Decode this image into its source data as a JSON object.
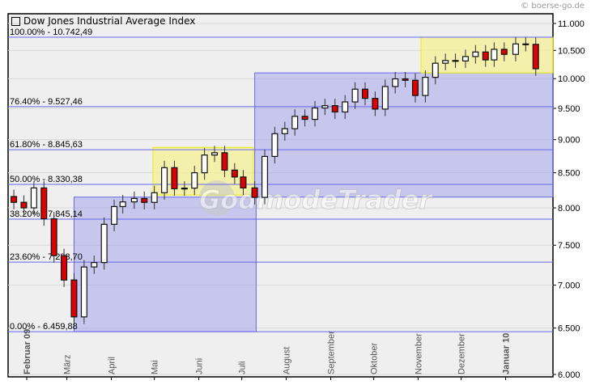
{
  "copyright": "© boerse-go.de",
  "watermark": "GodmodeTrader",
  "chart_data": {
    "type": "candlestick",
    "title": "Dow Jones Industrial Average Index",
    "y_scale": "log",
    "ylim": [
      6000,
      11000
    ],
    "y_ticks": [
      "6.000",
      "6.500",
      "7.000",
      "7.500",
      "8.000",
      "8.500",
      "9.000",
      "9.500",
      "10.000",
      "10.500",
      "11.000"
    ],
    "y_tick_values": [
      6000,
      6500,
      7000,
      7500,
      8000,
      8500,
      9000,
      9500,
      10000,
      10500,
      11000
    ],
    "x_range": [
      "2009-01-19",
      "2010-02-03"
    ],
    "x_ticks": [
      {
        "label": "Februar 09",
        "date": "2009-02-01",
        "bold": true
      },
      {
        "label": "März",
        "date": "2009-03-01"
      },
      {
        "label": "April",
        "date": "2009-04-01"
      },
      {
        "label": "Mai",
        "date": "2009-05-01"
      },
      {
        "label": "Juni",
        "date": "2009-06-01"
      },
      {
        "label": "Juli",
        "date": "2009-07-01"
      },
      {
        "label": "August",
        "date": "2009-08-01"
      },
      {
        "label": "September",
        "date": "2009-09-01"
      },
      {
        "label": "Oktober",
        "date": "2009-10-01"
      },
      {
        "label": "November",
        "date": "2009-11-01"
      },
      {
        "label": "Dezember",
        "date": "2009-12-01"
      },
      {
        "label": "Januar 10",
        "date": "2010-01-01",
        "bold": true
      }
    ],
    "grid": true,
    "fib_levels": [
      {
        "label": "100.00% - 10.742,49",
        "value": 10742.49
      },
      {
        "label": "76.40% - 9.527,46",
        "value": 9527.46
      },
      {
        "label": "61.80% - 8.845,63",
        "value": 8845.63
      },
      {
        "label": "50.00% - 8.330,38",
        "value": 8330.38
      },
      {
        "label": "38.20% - 7.845,14",
        "value": 7845.14
      },
      {
        "label": "23.60% - 7.283,70",
        "value": 7283.7
      },
      {
        "label": "0.00% - 6.459,88",
        "value": 6459.88
      }
    ],
    "zones": [
      {
        "color": "#9999ee",
        "from": "2009-03-06",
        "to": "2009-07-11",
        "low": 6459.88,
        "high": 8150
      },
      {
        "color": "#9999ee",
        "from": "2009-07-10",
        "to": "2010-02-03",
        "low": 8150,
        "high": 10100
      },
      {
        "color": "#f4f09a",
        "from": "2009-04-30",
        "to": "2009-07-09",
        "low": 8180,
        "high": 8880
      },
      {
        "color": "#f4f09a",
        "from": "2009-11-03",
        "to": "2010-02-03",
        "low": 10100,
        "high": 10742.49
      }
    ],
    "series": [
      {
        "date": "2009-01-23",
        "close": 8077
      },
      {
        "date": "2009-01-30",
        "close": 8000
      },
      {
        "date": "2009-02-06",
        "close": 8280
      },
      {
        "date": "2009-02-13",
        "close": 7850
      },
      {
        "date": "2009-02-20",
        "close": 7366
      },
      {
        "date": "2009-02-27",
        "close": 7063
      },
      {
        "date": "2009-03-06",
        "close": 6627
      },
      {
        "date": "2009-03-13",
        "close": 7224
      },
      {
        "date": "2009-03-20",
        "close": 7279
      },
      {
        "date": "2009-03-27",
        "close": 7776
      },
      {
        "date": "2009-04-03",
        "close": 8018
      },
      {
        "date": "2009-04-09",
        "close": 8083
      },
      {
        "date": "2009-04-17",
        "close": 8131
      },
      {
        "date": "2009-04-24",
        "close": 8076
      },
      {
        "date": "2009-05-01",
        "close": 8212
      },
      {
        "date": "2009-05-08",
        "close": 8575
      },
      {
        "date": "2009-05-15",
        "close": 8268
      },
      {
        "date": "2009-05-22",
        "close": 8277
      },
      {
        "date": "2009-05-29",
        "close": 8500
      },
      {
        "date": "2009-06-05",
        "close": 8764
      },
      {
        "date": "2009-06-12",
        "close": 8799
      },
      {
        "date": "2009-06-19",
        "close": 8539
      },
      {
        "date": "2009-06-26",
        "close": 8438
      },
      {
        "date": "2009-07-02",
        "close": 8280
      },
      {
        "date": "2009-07-10",
        "close": 8146
      },
      {
        "date": "2009-07-17",
        "close": 8743
      },
      {
        "date": "2009-07-24",
        "close": 9093
      },
      {
        "date": "2009-07-31",
        "close": 9172
      },
      {
        "date": "2009-08-07",
        "close": 9370
      },
      {
        "date": "2009-08-14",
        "close": 9321
      },
      {
        "date": "2009-08-21",
        "close": 9506
      },
      {
        "date": "2009-08-28",
        "close": 9544
      },
      {
        "date": "2009-09-04",
        "close": 9441
      },
      {
        "date": "2009-09-11",
        "close": 9606
      },
      {
        "date": "2009-09-18",
        "close": 9820
      },
      {
        "date": "2009-09-25",
        "close": 9665
      },
      {
        "date": "2009-10-02",
        "close": 9488
      },
      {
        "date": "2009-10-09",
        "close": 9865
      },
      {
        "date": "2009-10-16",
        "close": 9996
      },
      {
        "date": "2009-10-23",
        "close": 9972
      },
      {
        "date": "2009-10-30",
        "close": 9713
      },
      {
        "date": "2009-11-06",
        "close": 10023
      },
      {
        "date": "2009-11-13",
        "close": 10270
      },
      {
        "date": "2009-11-20",
        "close": 10318
      },
      {
        "date": "2009-11-27",
        "close": 10310
      },
      {
        "date": "2009-12-04",
        "close": 10389
      },
      {
        "date": "2009-12-11",
        "close": 10471
      },
      {
        "date": "2009-12-18",
        "close": 10329
      },
      {
        "date": "2009-12-24",
        "close": 10520
      },
      {
        "date": "2009-12-31",
        "close": 10428
      },
      {
        "date": "2010-01-08",
        "close": 10618
      },
      {
        "date": "2010-01-15",
        "close": 10610
      },
      {
        "date": "2010-01-22",
        "close": 10172
      }
    ],
    "up_color": "#ffffff",
    "down_color": "#dd0000",
    "fib_line_color": "#6666ee"
  }
}
